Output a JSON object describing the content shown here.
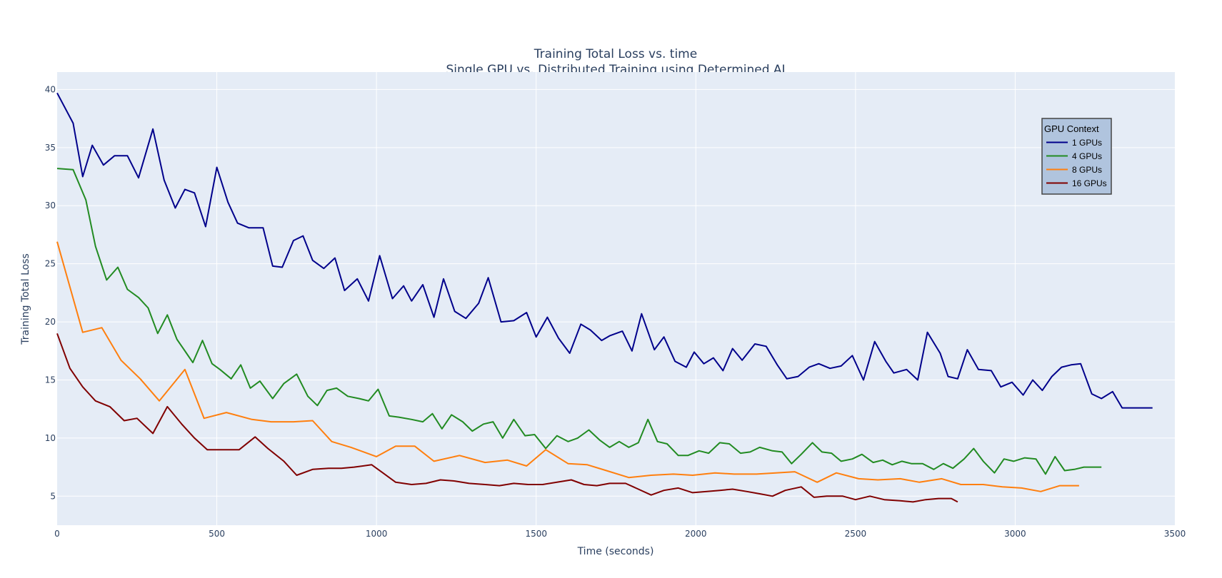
{
  "chart_data": {
    "type": "line",
    "title": "Training Total Loss vs. time",
    "subtitle": "Single GPU vs. Distributed Training using Determined AI",
    "xlabel": "Time (seconds)",
    "ylabel": "Training  Total Loss",
    "xlim": [
      0,
      3500
    ],
    "ylim": [
      2.5,
      41.5
    ],
    "x_ticks": [
      0,
      500,
      1000,
      1500,
      2000,
      2500,
      3000,
      3500
    ],
    "y_ticks": [
      5,
      10,
      15,
      20,
      25,
      30,
      35,
      40
    ],
    "grid": true,
    "legend": {
      "title": "GPU Context",
      "placement": "top-right"
    },
    "colors": {
      "plot_background": "#E5ECF6",
      "grid": "#ffffff",
      "text": "#2a3f5f",
      "legend_background": "#B0C4DE",
      "legend_border": "#444444"
    },
    "series": [
      {
        "name": "1 GPUs",
        "color": "#00008B",
        "x": [
          0,
          50,
          80,
          110,
          145,
          180,
          220,
          255,
          300,
          335,
          370,
          400,
          430,
          465,
          500,
          535,
          565,
          600,
          645,
          675,
          705,
          740,
          770,
          800,
          835,
          870,
          900,
          940,
          975,
          1010,
          1050,
          1085,
          1110,
          1145,
          1180,
          1210,
          1245,
          1280,
          1320,
          1350,
          1390,
          1430,
          1470,
          1500,
          1535,
          1570,
          1605,
          1640,
          1670,
          1705,
          1730,
          1770,
          1800,
          1830,
          1870,
          1900,
          1935,
          1970,
          1995,
          2025,
          2055,
          2085,
          2115,
          2145,
          2185,
          2220,
          2255,
          2285,
          2320,
          2355,
          2385,
          2420,
          2455,
          2490,
          2525,
          2560,
          2595,
          2620,
          2660,
          2695,
          2725,
          2765,
          2790,
          2820,
          2850,
          2885,
          2925,
          2955,
          2990,
          3025,
          3055,
          3085,
          3115,
          3145,
          3175,
          3205,
          3240,
          3270,
          3305,
          3335,
          3375,
          3400,
          3430
        ],
        "y": [
          39.7,
          37.1,
          32.5,
          35.2,
          33.5,
          34.3,
          34.3,
          32.4,
          36.6,
          32.2,
          29.8,
          31.4,
          31.1,
          28.2,
          33.3,
          30.3,
          28.5,
          28.1,
          28.1,
          24.8,
          24.7,
          27.0,
          27.4,
          25.3,
          24.6,
          25.5,
          22.7,
          23.7,
          21.8,
          25.7,
          22.0,
          23.1,
          21.8,
          23.2,
          20.4,
          23.7,
          20.9,
          20.3,
          21.6,
          23.8,
          20.0,
          20.1,
          20.8,
          18.7,
          20.4,
          18.6,
          17.3,
          19.8,
          19.3,
          18.4,
          18.8,
          19.2,
          17.5,
          20.7,
          17.6,
          18.7,
          16.6,
          16.1,
          17.4,
          16.4,
          16.9,
          15.8,
          17.7,
          16.7,
          18.1,
          17.9,
          16.3,
          15.1,
          15.3,
          16.1,
          16.4,
          16.0,
          16.2,
          17.1,
          15.0,
          18.3,
          16.6,
          15.6,
          15.9,
          15.0,
          19.1,
          17.3,
          15.3,
          15.1,
          17.6,
          15.9,
          15.8,
          14.4,
          14.8,
          13.7,
          15.0,
          14.1,
          15.3,
          16.1,
          16.3,
          16.4,
          13.8,
          13.4,
          14.0,
          12.6,
          12.6,
          12.6,
          12.6
        ]
      },
      {
        "name": "4 GPUs",
        "color": "#228B22",
        "x": [
          0,
          50,
          90,
          120,
          155,
          190,
          220,
          255,
          285,
          315,
          345,
          375,
          405,
          425,
          455,
          485,
          510,
          545,
          575,
          605,
          635,
          675,
          710,
          750,
          785,
          815,
          845,
          875,
          910,
          945,
          975,
          1005,
          1040,
          1070,
          1110,
          1145,
          1175,
          1205,
          1235,
          1270,
          1300,
          1335,
          1365,
          1395,
          1430,
          1465,
          1495,
          1530,
          1565,
          1600,
          1630,
          1665,
          1700,
          1730,
          1760,
          1790,
          1820,
          1850,
          1880,
          1910,
          1945,
          1975,
          2010,
          2040,
          2075,
          2105,
          2140,
          2170,
          2200,
          2240,
          2270,
          2300,
          2330,
          2365,
          2395,
          2425,
          2455,
          2490,
          2520,
          2555,
          2585,
          2615,
          2645,
          2675,
          2710,
          2745,
          2775,
          2805,
          2840,
          2870,
          2900,
          2935,
          2965,
          2995,
          3030,
          3065,
          3095,
          3125,
          3155,
          3185,
          3215,
          3250,
          3270
        ],
        "y": [
          33.2,
          33.1,
          30.5,
          26.5,
          23.6,
          24.7,
          22.8,
          22.1,
          21.2,
          19.0,
          20.6,
          18.5,
          17.3,
          16.5,
          18.4,
          16.4,
          15.9,
          15.1,
          16.3,
          14.3,
          14.9,
          13.4,
          14.7,
          15.5,
          13.6,
          12.8,
          14.1,
          14.3,
          13.6,
          13.4,
          13.2,
          14.2,
          11.9,
          11.8,
          11.6,
          11.4,
          12.1,
          10.8,
          12.0,
          11.4,
          10.6,
          11.2,
          11.4,
          10.0,
          11.6,
          10.2,
          10.3,
          9.1,
          10.2,
          9.7,
          10.0,
          10.7,
          9.8,
          9.2,
          9.7,
          9.2,
          9.6,
          11.6,
          9.7,
          9.5,
          8.5,
          8.5,
          8.9,
          8.7,
          9.6,
          9.5,
          8.7,
          8.8,
          9.2,
          8.9,
          8.8,
          7.8,
          8.6,
          9.6,
          8.8,
          8.7,
          8.0,
          8.2,
          8.6,
          7.9,
          8.1,
          7.7,
          8.0,
          7.8,
          7.8,
          7.3,
          7.8,
          7.4,
          8.2,
          9.1,
          8.0,
          7.0,
          8.2,
          8.0,
          8.3,
          8.2,
          6.9,
          8.4,
          7.2,
          7.3,
          7.5,
          7.5,
          7.5
        ]
      },
      {
        "name": "8 GPUs",
        "color": "#FF7F0E",
        "x": [
          0,
          80,
          140,
          200,
          260,
          320,
          400,
          460,
          530,
          610,
          670,
          740,
          800,
          860,
          920,
          1000,
          1060,
          1120,
          1180,
          1260,
          1340,
          1410,
          1470,
          1530,
          1600,
          1660,
          1720,
          1790,
          1860,
          1930,
          1990,
          2060,
          2120,
          2190,
          2250,
          2310,
          2380,
          2440,
          2510,
          2570,
          2640,
          2700,
          2770,
          2830,
          2900,
          2960,
          3020,
          3080,
          3140,
          3200
        ],
        "y": [
          26.9,
          19.1,
          19.5,
          16.7,
          15.1,
          13.2,
          15.9,
          11.7,
          12.2,
          11.6,
          11.4,
          11.4,
          11.5,
          9.7,
          9.2,
          8.4,
          9.3,
          9.3,
          8.0,
          8.5,
          7.9,
          8.1,
          7.6,
          9.0,
          7.8,
          7.7,
          7.2,
          6.6,
          6.8,
          6.9,
          6.8,
          7.0,
          6.9,
          6.9,
          7.0,
          7.1,
          6.2,
          7.0,
          6.5,
          6.4,
          6.5,
          6.2,
          6.5,
          6.0,
          6.0,
          5.8,
          5.7,
          5.4,
          5.9,
          5.9
        ]
      },
      {
        "name": "16 GPUs",
        "color": "#800000",
        "x": [
          0,
          40,
          80,
          120,
          165,
          210,
          250,
          300,
          345,
          390,
          430,
          470,
          500,
          570,
          620,
          660,
          710,
          750,
          800,
          850,
          890,
          930,
          985,
          1020,
          1060,
          1110,
          1155,
          1200,
          1245,
          1290,
          1340,
          1385,
          1430,
          1475,
          1520,
          1565,
          1610,
          1650,
          1690,
          1730,
          1780,
          1820,
          1860,
          1900,
          1945,
          1990,
          2035,
          2075,
          2115,
          2160,
          2200,
          2240,
          2280,
          2330,
          2370,
          2410,
          2460,
          2500,
          2545,
          2590,
          2640,
          2680,
          2720,
          2760,
          2800,
          2820
        ],
        "y": [
          19.0,
          16.0,
          14.4,
          13.2,
          12.7,
          11.5,
          11.7,
          10.4,
          12.7,
          11.2,
          10.0,
          9.0,
          9.0,
          9.0,
          10.1,
          9.1,
          8.0,
          6.8,
          7.3,
          7.4,
          7.4,
          7.5,
          7.7,
          7.0,
          6.2,
          6.0,
          6.1,
          6.4,
          6.3,
          6.1,
          6.0,
          5.9,
          6.1,
          6.0,
          6.0,
          6.2,
          6.4,
          6.0,
          5.9,
          6.1,
          6.1,
          5.6,
          5.1,
          5.5,
          5.7,
          5.3,
          5.4,
          5.5,
          5.6,
          5.4,
          5.2,
          5.0,
          5.5,
          5.8,
          4.9,
          5.0,
          5.0,
          4.7,
          5.0,
          4.7,
          4.6,
          4.5,
          4.7,
          4.8,
          4.8,
          4.5
        ]
      }
    ]
  }
}
